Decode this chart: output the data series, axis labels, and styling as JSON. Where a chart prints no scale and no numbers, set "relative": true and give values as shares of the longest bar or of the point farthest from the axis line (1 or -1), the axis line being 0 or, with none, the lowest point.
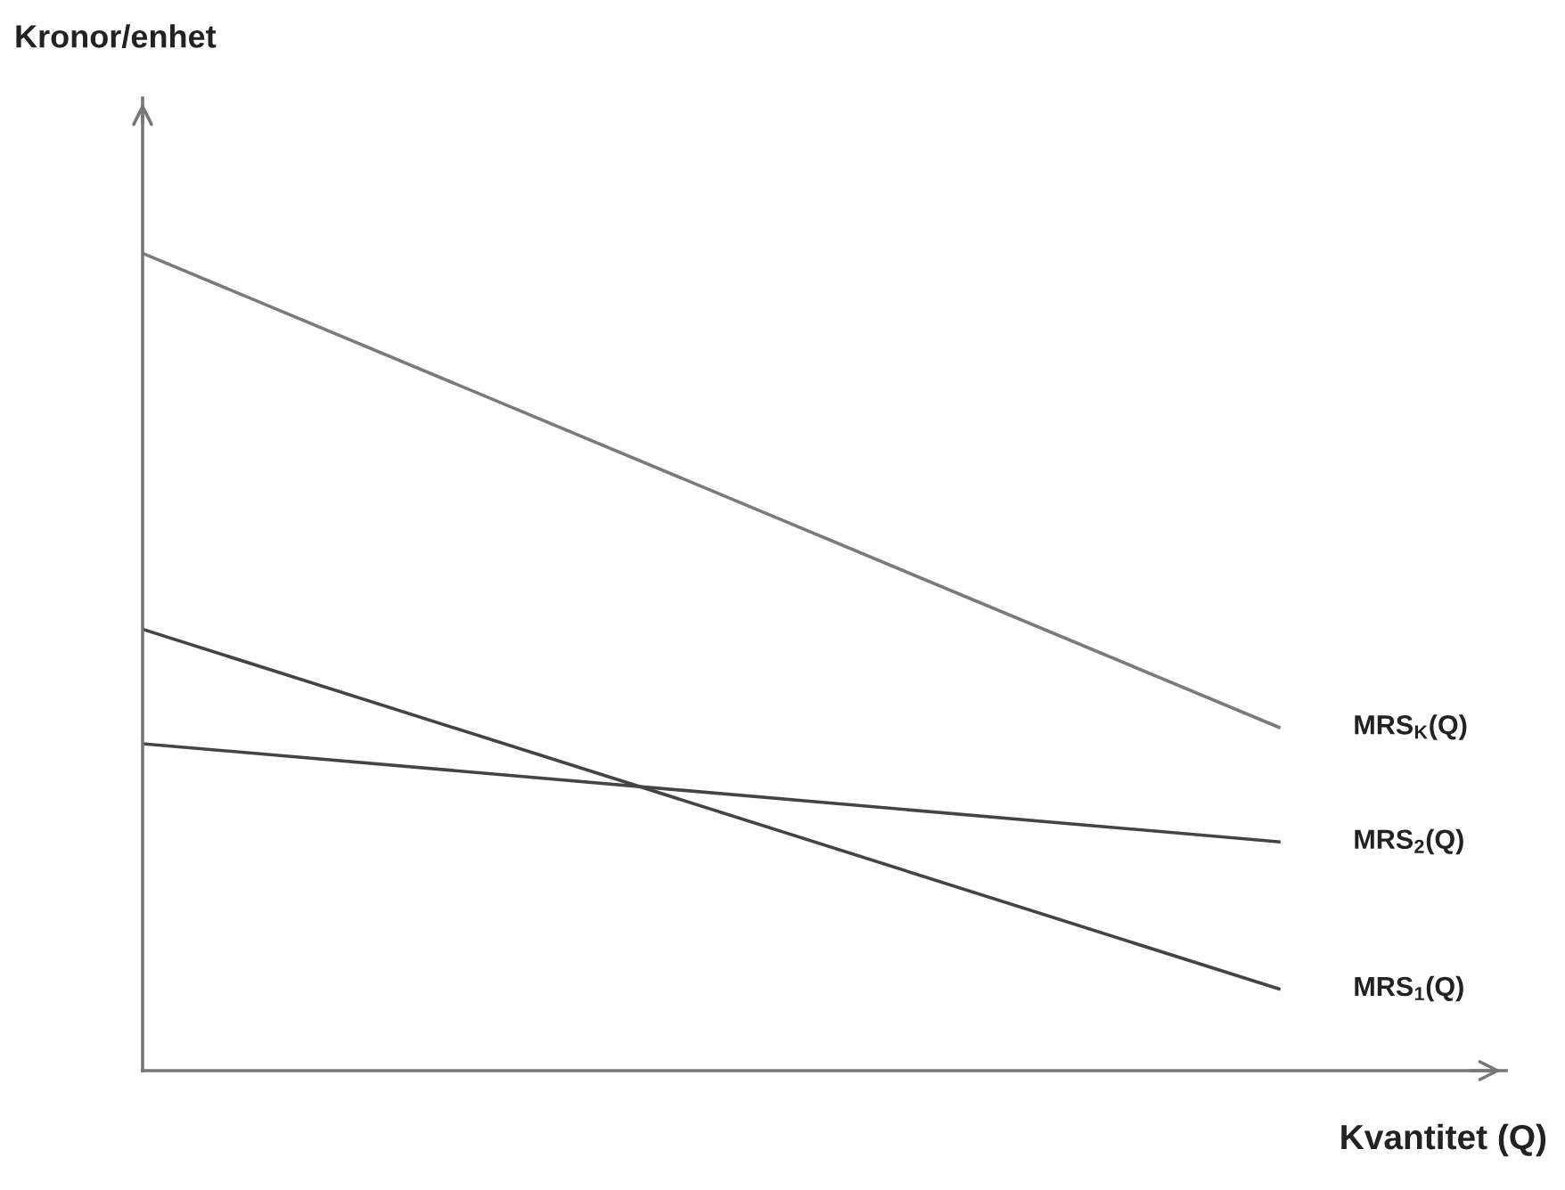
{
  "chart_data": {
    "type": "line",
    "relative": true,
    "xlabel": "Kvantitet (Q)",
    "annotations": [
      "Kronor/enhet"
    ],
    "categories": [
      null,
      null
    ],
    "series": [
      {
        "name": "MRS$_{K}$(Q)",
        "color": "#7a7a7a",
        "values": [
          1.0,
          0.42
        ]
      },
      {
        "name": "MRS$_{2}$(Q)",
        "color": "#444444",
        "values": [
          0.4,
          0.28
        ]
      },
      {
        "name": "MRS$_{1}$(Q)",
        "color": "#444444",
        "values": [
          0.54,
          0.1
        ]
      }
    ],
    "legend": false,
    "grid": false,
    "marker": "none",
    "line_style": "solid"
  }
}
